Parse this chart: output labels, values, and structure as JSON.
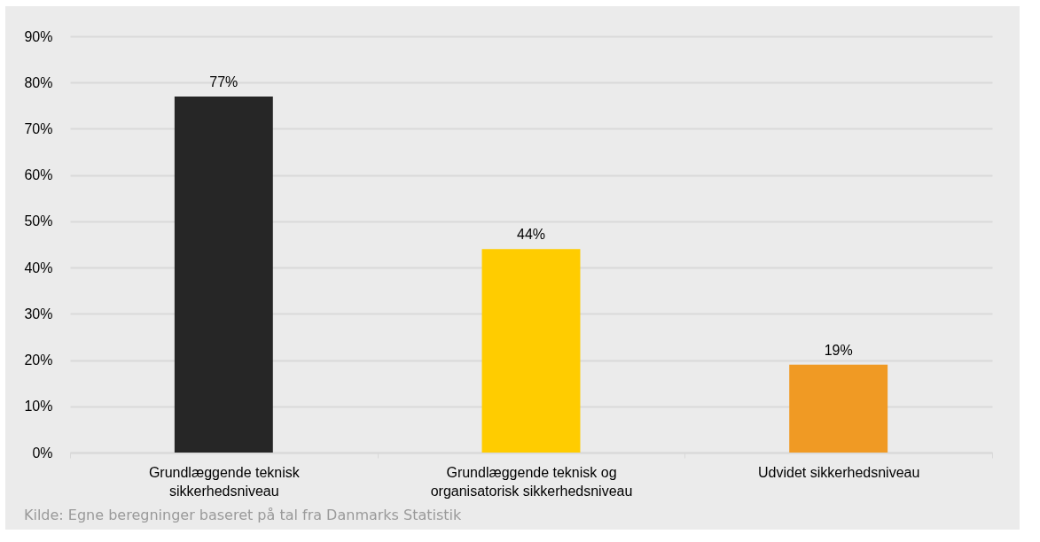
{
  "chart_data": {
    "type": "bar",
    "categories": [
      "Grundlæggende teknisk sikkerhedsniveau",
      "Grundlæggende teknisk og organisatorisk sikkerhedsniveau",
      "Udvidet sikkerhedsniveau"
    ],
    "values": [
      77,
      44,
      19
    ],
    "colors": [
      "#262626",
      "#ffcc00",
      "#f09a24"
    ],
    "value_labels": [
      "77%",
      "44%",
      "19%"
    ],
    "ylim": [
      0,
      90
    ],
    "yticks": [
      {
        "value": 0,
        "label": "0%"
      },
      {
        "value": 10,
        "label": "10%"
      },
      {
        "value": 20,
        "label": "20%"
      },
      {
        "value": 30,
        "label": "30%"
      },
      {
        "value": 40,
        "label": "40%"
      },
      {
        "value": 50,
        "label": "50%"
      },
      {
        "value": 60,
        "label": "60%"
      },
      {
        "value": 70,
        "label": "70%"
      },
      {
        "value": 80,
        "label": "80%"
      },
      {
        "value": 90,
        "label": "90%"
      }
    ],
    "grid": "y",
    "annotations": [
      "Kilde: Egne beregninger baseret på tal fra Danmarks Statistik"
    ]
  }
}
